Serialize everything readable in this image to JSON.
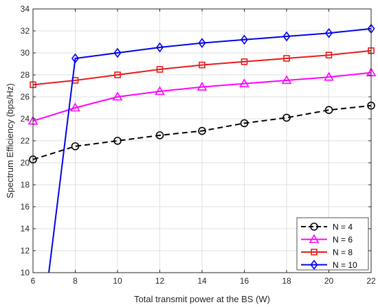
{
  "chart_data": {
    "type": "line",
    "title": "",
    "xlabel": "Total transmit power at the BS (W)",
    "ylabel": "Spectrum Efficiency (bps/Hz)",
    "xlim": [
      6,
      22
    ],
    "ylim": [
      10,
      34
    ],
    "xticks": [
      6,
      8,
      10,
      12,
      14,
      16,
      18,
      20,
      22
    ],
    "yticks": [
      10,
      12,
      14,
      16,
      18,
      20,
      22,
      24,
      26,
      28,
      30,
      32,
      34
    ],
    "grid": true,
    "legend_position": "bottom-right",
    "series": [
      {
        "name": "N = 4",
        "color": "#000000",
        "line_style": "dashed",
        "marker": "circle",
        "x": [
          6,
          8,
          10,
          12,
          14,
          16,
          18,
          20,
          22
        ],
        "y": [
          20.3,
          21.5,
          22.0,
          22.5,
          22.9,
          23.6,
          24.1,
          24.8,
          25.2
        ]
      },
      {
        "name": "N = 6",
        "color": "#ff00ff",
        "line_style": "solid",
        "marker": "triangle",
        "x": [
          6,
          8,
          10,
          12,
          14,
          16,
          18,
          20,
          22
        ],
        "y": [
          23.8,
          25.0,
          26.0,
          26.5,
          26.9,
          27.2,
          27.5,
          27.8,
          28.2
        ]
      },
      {
        "name": "N = 8",
        "color": "#e8191b",
        "line_style": "solid",
        "marker": "square",
        "x": [
          6,
          8,
          10,
          12,
          14,
          16,
          18,
          20,
          22
        ],
        "y": [
          27.1,
          27.5,
          28.0,
          28.5,
          28.9,
          29.2,
          29.5,
          29.8,
          30.2
        ]
      },
      {
        "name": "N = 10",
        "color": "#0000ee",
        "line_style": "solid",
        "marker": "diamond",
        "x": [
          6.75,
          8,
          10,
          12,
          14,
          16,
          18,
          20,
          22
        ],
        "y": [
          10,
          29.5,
          30.0,
          30.5,
          30.9,
          31.2,
          31.5,
          31.8,
          32.2
        ],
        "marker_from_index": 1
      }
    ]
  }
}
